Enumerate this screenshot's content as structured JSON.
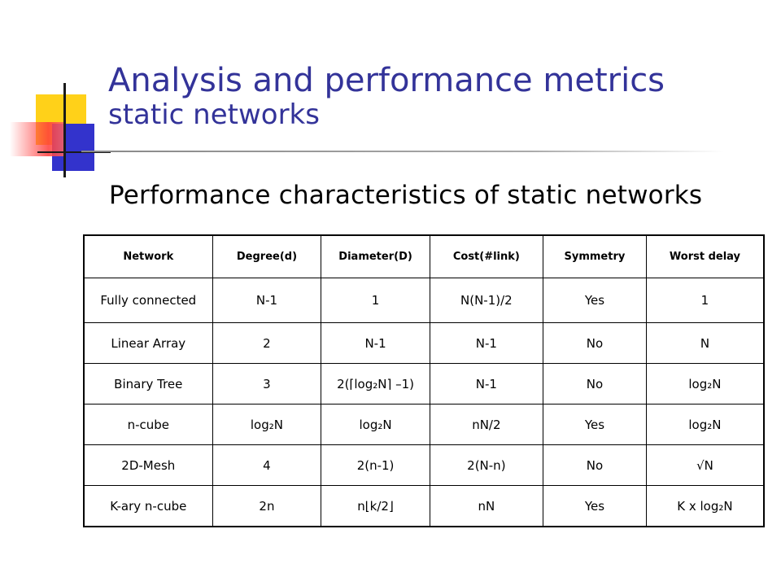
{
  "slide": {
    "title_line1": "Analysis and performance metrics",
    "title_line2": "static networks",
    "subtitle": "Performance characteristics of static networks"
  },
  "logo": {
    "icon": "overlapping-squares-logo-icon"
  },
  "table": {
    "headers": [
      "Network",
      "Degree(d)",
      "Diameter(D)",
      "Cost(#link)",
      "Symmetry",
      "Worst delay"
    ],
    "rows": [
      [
        "Fully connected",
        "N-1",
        "1",
        "N(N-1)/2",
        "Yes",
        "1"
      ],
      [
        "Linear Array",
        "2",
        "N-1",
        "N-1",
        "No",
        "N"
      ],
      [
        "Binary Tree",
        "3",
        "2(⌈log₂N⌉ –1)",
        "N-1",
        "No",
        "log₂N"
      ],
      [
        "n-cube",
        "log₂N",
        "log₂N",
        "nN/2",
        "Yes",
        "log₂N"
      ],
      [
        "2D-Mesh",
        "4",
        "2(n-1)",
        "2(N-n)",
        "No",
        "√N"
      ],
      [
        "K-ary n-cube",
        "2n",
        "n⌊k/2⌋",
        "nN",
        "Yes",
        "K x log₂N"
      ]
    ]
  },
  "colors": {
    "title": "#333399",
    "logo_yellow": "#ffcc00",
    "logo_blue": "#3333cc",
    "logo_red": "#ff3b3b"
  }
}
